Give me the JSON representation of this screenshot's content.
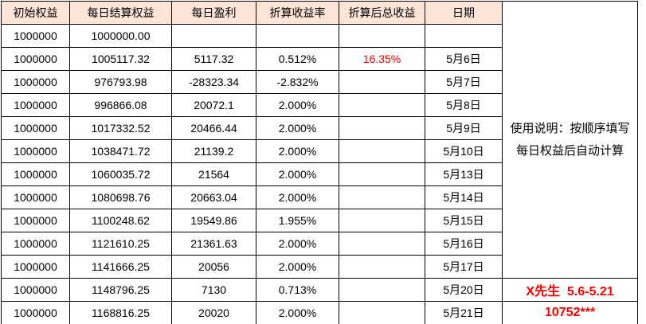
{
  "colors": {
    "header_bg": "#fce4d6",
    "accent_red": "#ff0000",
    "border": "#000000",
    "text": "#000000"
  },
  "table": {
    "headers": [
      "初始权益",
      "每日结算权益",
      "每日盈利",
      "折算收益率",
      "折算后总收益",
      "日期"
    ],
    "rows": [
      [
        "1000000",
        "1000000.00",
        "",
        "",
        "",
        ""
      ],
      [
        "1000000",
        "1005117.32",
        "5117.32",
        "0.512%",
        "16.35%",
        "5月6日"
      ],
      [
        "1000000",
        "976793.98",
        "-28323.34",
        "-2.832%",
        "",
        "5月7日"
      ],
      [
        "1000000",
        "996866.08",
        "20072.1",
        "2.000%",
        "",
        "5月8日"
      ],
      [
        "1000000",
        "1017332.52",
        "20466.44",
        "2.000%",
        "",
        "5月9日"
      ],
      [
        "1000000",
        "1038471.72",
        "21139.2",
        "2.000%",
        "",
        "5月10日"
      ],
      [
        "1000000",
        "1060035.72",
        "21564",
        "2.000%",
        "",
        "5月13日"
      ],
      [
        "1000000",
        "1080698.76",
        "20663.04",
        "2.000%",
        "",
        "5月14日"
      ],
      [
        "1000000",
        "1100248.62",
        "19549.86",
        "1.955%",
        "",
        "5月15日"
      ],
      [
        "1000000",
        "1121610.25",
        "21361.63",
        "2.000%",
        "",
        "5月16日"
      ],
      [
        "1000000",
        "1141666.25",
        "20056",
        "2.000%",
        "",
        "5月17日"
      ],
      [
        "1000000",
        "1148796.25",
        "7130",
        "0.713%",
        "",
        "5月20日"
      ],
      [
        "1000000",
        "1168816.25",
        "20020",
        "2.000%",
        "",
        "5月21日"
      ]
    ],
    "total_return_highlight": "16.35%"
  },
  "side_panel": {
    "note": "使用说明：按顺序填写每日权益后自动计算",
    "signature": "X先生  5.6-5.21",
    "code": "10752***"
  }
}
